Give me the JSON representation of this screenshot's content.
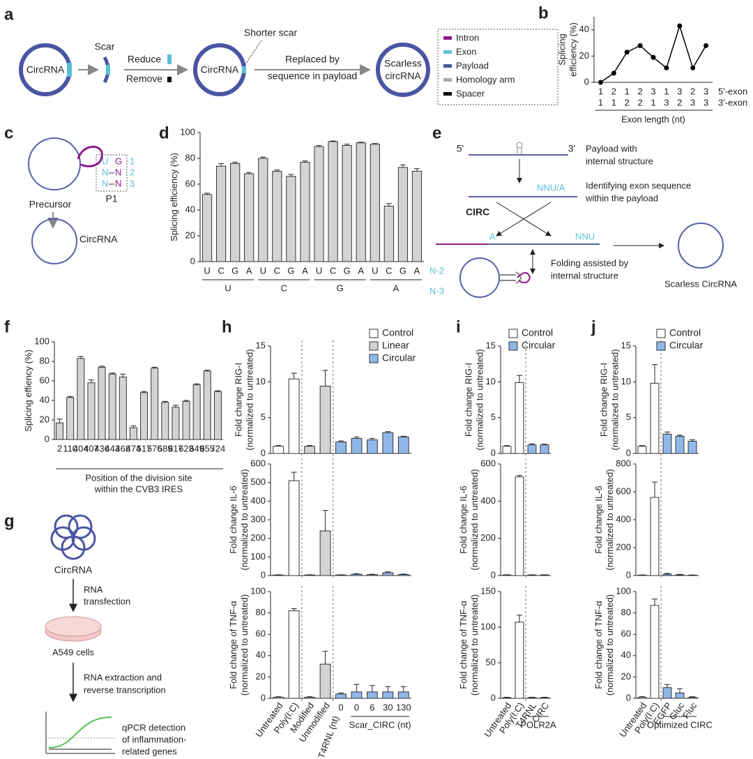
{
  "panel_labels": [
    "a",
    "b",
    "c",
    "d",
    "e",
    "f",
    "g",
    "h",
    "i",
    "j"
  ],
  "diagram_a": {
    "circ1": "CircRNA",
    "scar": "Scar",
    "reduce": "Reduce",
    "remove": "Remove",
    "circ2": "CircRNA",
    "shorter_scar": "Shorter scar",
    "replaced": [
      "Replaced by",
      "sequence in payload"
    ],
    "scarless": [
      "Scarless",
      "circRNA"
    ],
    "legend": [
      "Intron",
      "Exon",
      "Payload",
      "Homology arm",
      "Spacer"
    ]
  },
  "diagram_c": {
    "p1_left": [
      "U",
      "N",
      "N"
    ],
    "p1_right": [
      "G",
      "N",
      "N"
    ],
    "p1_index": [
      1,
      2,
      3
    ],
    "p1": "P1",
    "precursor": "Precursor",
    "circrna": "CircRNA"
  },
  "diagram_e": {
    "five": "5'",
    "three": "3'",
    "payload": [
      "Payload with",
      "internal structure"
    ],
    "nnu_a": "NNU/A",
    "identify": [
      "Identifying exon sequence",
      "within the payload"
    ],
    "circ": "CIRC",
    "a": "A",
    "nnu": "NNU",
    "folding": [
      "Folding assisted by",
      "internal structure"
    ],
    "scarless": "Scarless CircRNA"
  },
  "diagram_g": {
    "circrna": "CircRNA",
    "transfection": [
      "RNA",
      "transfection"
    ],
    "cells": "A549 cells",
    "extraction": [
      "RNA extraction and",
      "reverse transcription"
    ],
    "qpcr": [
      "qPCR detection",
      "of inflammation-",
      "related genes"
    ]
  },
  "chart_data": [
    {
      "type": "line",
      "ylabel": [
        "Splicing",
        "efficiency (%)"
      ],
      "xlabel": "Exon length (nt)",
      "categories": [
        "1",
        "2",
        "1",
        "2",
        "3",
        "1",
        "3",
        "2",
        "3"
      ],
      "categories_row2": [
        "1",
        "1",
        "2",
        "2",
        "1",
        "3",
        "2",
        "3",
        "3"
      ],
      "tier_labels": [
        "5'-exon",
        "3'-exon"
      ],
      "values": [
        0,
        7,
        23,
        28,
        19,
        11,
        43,
        11,
        28
      ],
      "color": "#000000",
      "ylim": [
        0,
        50
      ],
      "yticks": [
        0,
        20,
        40
      ]
    },
    {
      "type": "bar",
      "ylabel": "Splicing efficiency (%)",
      "categories": [
        "U",
        "C",
        "G",
        "A",
        "U",
        "C",
        "G",
        "A",
        "U",
        "C",
        "G",
        "A",
        "U",
        "C",
        "G",
        "A"
      ],
      "groups": [
        {
          "label": "U",
          "from": 0,
          "to": 3
        },
        {
          "label": "C",
          "from": 4,
          "to": 7
        },
        {
          "label": "G",
          "from": 8,
          "to": 11
        },
        {
          "label": "A",
          "from": 12,
          "to": 15
        }
      ],
      "tier_labels": [
        "N-2",
        "N-3"
      ],
      "values": [
        52,
        74,
        76,
        68,
        80,
        70,
        66,
        77,
        89,
        93,
        90,
        92,
        91,
        43,
        73,
        70
      ],
      "errors": [
        1,
        2,
        1,
        1,
        1,
        1,
        1.5,
        1,
        1,
        0.5,
        1,
        0.5,
        0.5,
        2,
        2,
        2
      ],
      "color": "#d3d3d3",
      "ylim": [
        0,
        100
      ],
      "yticks": [
        0,
        20,
        40,
        60,
        80,
        100
      ]
    },
    {
      "type": "bar",
      "ylabel": "Splicing effiency (%)",
      "xlabel": [
        "Position of the division site",
        "within the CVB3 IRES"
      ],
      "categories": [
        "2",
        "110",
        "404",
        "407",
        "436",
        "443",
        "468",
        "474",
        "517",
        "576",
        "589",
        "617",
        "623",
        "649",
        "655",
        "724"
      ],
      "values": [
        17,
        43,
        83,
        58,
        74,
        67,
        64,
        12,
        48,
        73,
        38,
        33,
        39,
        56,
        70,
        49
      ],
      "errors": [
        4,
        1,
        2,
        3,
        1,
        1,
        3,
        2,
        1,
        1,
        1,
        2,
        1,
        1,
        1,
        1
      ],
      "color": "#d3d3d3",
      "ylim": [
        0,
        100
      ],
      "yticks": [
        0,
        20,
        40,
        60,
        80,
        100
      ]
    },
    {
      "type": "bar",
      "ylabel": [
        "Fold change RIG-I",
        "(normalized to untreated)"
      ],
      "legend": "upper right",
      "series": [
        {
          "name": "Control",
          "color": "#ffffff",
          "values": [
            1.0,
            10.4,
            null,
            null,
            null,
            null,
            null,
            null,
            null
          ],
          "errors": [
            0.1,
            0.8,
            null,
            null,
            null,
            null,
            null,
            null,
            null
          ]
        },
        {
          "name": "Linear",
          "color": "#d3d3d3",
          "values": [
            null,
            null,
            1.0,
            9.4,
            null,
            null,
            null,
            null,
            null
          ],
          "errors": [
            null,
            null,
            0.1,
            2.2,
            null,
            null,
            null,
            null,
            null
          ]
        },
        {
          "name": "Circular",
          "color": "#8fb8e8",
          "values": [
            null,
            null,
            null,
            null,
            1.6,
            2.1,
            1.9,
            2.9,
            2.3
          ],
          "errors": [
            null,
            null,
            null,
            null,
            0.15,
            0.2,
            0.2,
            0.15,
            0.1
          ]
        }
      ],
      "ylim": [
        0,
        15
      ],
      "yticks": [
        0,
        5,
        10,
        15
      ]
    },
    {
      "type": "bar",
      "ylabel": [
        "Fold change IL-6",
        "(normalized to untreated)"
      ],
      "series": [
        {
          "color": "#ffffff",
          "values": [
            3,
            510,
            null,
            null,
            null,
            null,
            null,
            null,
            null
          ],
          "errors": [
            1,
            45,
            null,
            null,
            null,
            null,
            null,
            null,
            null
          ]
        },
        {
          "color": "#d3d3d3",
          "values": [
            null,
            null,
            3,
            240,
            null,
            null,
            null,
            null,
            null
          ],
          "errors": [
            null,
            null,
            1,
            110,
            null,
            null,
            null,
            null,
            null
          ]
        },
        {
          "color": "#8fb8e8",
          "values": [
            null,
            null,
            null,
            null,
            3,
            7,
            5,
            15,
            6
          ],
          "errors": [
            null,
            null,
            null,
            null,
            1,
            3,
            2,
            5,
            2
          ]
        }
      ],
      "ylim": [
        0,
        600
      ],
      "yticks": [
        0,
        100,
        200,
        300,
        400,
        500,
        600
      ]
    },
    {
      "type": "bar",
      "ylabel": [
        "Fold change of TNF-α",
        "(normalized to untreated)"
      ],
      "categories": [
        "Untreated",
        "Poly(I:C)",
        "Modified",
        "Unmodified",
        "0",
        "0",
        "6",
        "30",
        "130"
      ],
      "groups": [
        {
          "label": "Scar_T4RNL (nt)",
          "from": 4,
          "to": 4
        },
        {
          "label": "Scar_CIRC (nt)",
          "from": 5,
          "to": 8
        }
      ],
      "series": [
        {
          "color": "#ffffff",
          "values": [
            1,
            82,
            null,
            null,
            null,
            null,
            null,
            null,
            null
          ],
          "errors": [
            0.5,
            2,
            null,
            null,
            null,
            null,
            null,
            null,
            null
          ]
        },
        {
          "color": "#d3d3d3",
          "values": [
            null,
            null,
            1,
            32,
            null,
            null,
            null,
            null,
            null
          ],
          "errors": [
            null,
            null,
            0.5,
            12,
            null,
            null,
            null,
            null,
            null
          ]
        },
        {
          "color": "#8fb8e8",
          "values": [
            null,
            null,
            null,
            null,
            4,
            6,
            6,
            6,
            6
          ],
          "errors": [
            null,
            null,
            null,
            null,
            1,
            7,
            6,
            5,
            5
          ]
        }
      ],
      "ylim": [
        0,
        100
      ],
      "yticks": [
        0,
        20,
        40,
        60,
        80,
        100
      ]
    },
    {
      "type": "bar",
      "ylabel": [
        "Fold change RIG-I",
        "(normalized to untreated)"
      ],
      "legend": "upper right",
      "series": [
        {
          "name": "Control",
          "color": "#ffffff",
          "values": [
            1.0,
            9.9,
            null,
            null
          ],
          "errors": [
            0.1,
            1.0,
            null,
            null
          ]
        },
        {
          "name": "Circular",
          "color": "#8fb8e8",
          "values": [
            null,
            null,
            1.2,
            1.2
          ],
          "errors": [
            null,
            null,
            0.15,
            0.1
          ]
        }
      ],
      "ylim": [
        0,
        15
      ],
      "yticks": [
        0,
        5,
        10,
        15
      ]
    },
    {
      "type": "bar",
      "ylabel": [
        "Fold change IL-6",
        "(normalized to untreated)"
      ],
      "series": [
        {
          "color": "#ffffff",
          "values": [
            3,
            530,
            null,
            null
          ],
          "errors": [
            1,
            8,
            null,
            null
          ]
        },
        {
          "color": "#8fb8e8",
          "values": [
            null,
            null,
            3,
            3
          ],
          "errors": [
            null,
            null,
            1,
            1
          ]
        }
      ],
      "ylim": [
        0,
        600
      ],
      "yticks": [
        0,
        200,
        400,
        600
      ]
    },
    {
      "type": "bar",
      "ylabel": [
        "Fold change of TNF-α",
        "(normalized to untreated)"
      ],
      "categories": [
        "Untreated",
        "Poly(I:C)",
        "T4RNL",
        "CIRC"
      ],
      "groups": [
        {
          "label": "POLR2A",
          "from": 2,
          "to": 3
        }
      ],
      "series": [
        {
          "color": "#ffffff",
          "values": [
            1,
            107,
            null,
            null
          ],
          "errors": [
            0.5,
            10,
            null,
            null
          ]
        },
        {
          "color": "#8fb8e8",
          "values": [
            null,
            null,
            1,
            1
          ],
          "errors": [
            null,
            null,
            0.5,
            0.5
          ]
        }
      ],
      "ylim": [
        0,
        150
      ],
      "yticks": [
        0,
        50,
        100,
        150
      ]
    },
    {
      "type": "bar",
      "ylabel": [
        "Fold change RIG-I",
        "(normalized to untreated)"
      ],
      "legend": "upper right",
      "series": [
        {
          "name": "Control",
          "color": "#ffffff",
          "values": [
            1.0,
            9.8,
            null,
            null,
            null
          ],
          "errors": [
            0.1,
            2.6,
            null,
            null,
            null
          ]
        },
        {
          "name": "Circular",
          "color": "#8fb8e8",
          "values": [
            null,
            null,
            2.7,
            2.4,
            1.7
          ],
          "errors": [
            null,
            null,
            0.3,
            0.15,
            0.2
          ]
        }
      ],
      "ylim": [
        0,
        15
      ],
      "yticks": [
        0,
        5,
        10,
        15
      ]
    },
    {
      "type": "bar",
      "ylabel": [
        "Fold change IL-6",
        "(normalized to untreated)"
      ],
      "series": [
        {
          "color": "#ffffff",
          "values": [
            3,
            560,
            null,
            null,
            null
          ],
          "errors": [
            1,
            110,
            null,
            null,
            null
          ]
        },
        {
          "color": "#8fb8e8",
          "values": [
            null,
            null,
            10,
            5,
            3
          ],
          "errors": [
            null,
            null,
            5,
            3,
            1
          ]
        }
      ],
      "ylim": [
        0,
        800
      ],
      "yticks": [
        0,
        200,
        400,
        600,
        800
      ]
    },
    {
      "type": "bar",
      "ylabel": [
        "Fold change of TNF-α",
        "(normalized to untreated)"
      ],
      "categories": [
        "Untreated",
        "Poly(I:C)",
        "EGFP",
        "Gluc",
        "Fluc"
      ],
      "groups": [
        {
          "label": "Optimized CIRC",
          "from": 2,
          "to": 4
        }
      ],
      "series": [
        {
          "color": "#ffffff",
          "values": [
            1,
            87,
            null,
            null,
            null
          ],
          "errors": [
            0.5,
            6,
            null,
            null,
            null
          ]
        },
        {
          "color": "#8fb8e8",
          "values": [
            null,
            null,
            10,
            5,
            1
          ],
          "errors": [
            null,
            null,
            3,
            4,
            0.5
          ]
        }
      ],
      "ylim": [
        0,
        100
      ],
      "yticks": [
        0,
        20,
        40,
        60,
        80,
        100
      ]
    }
  ]
}
